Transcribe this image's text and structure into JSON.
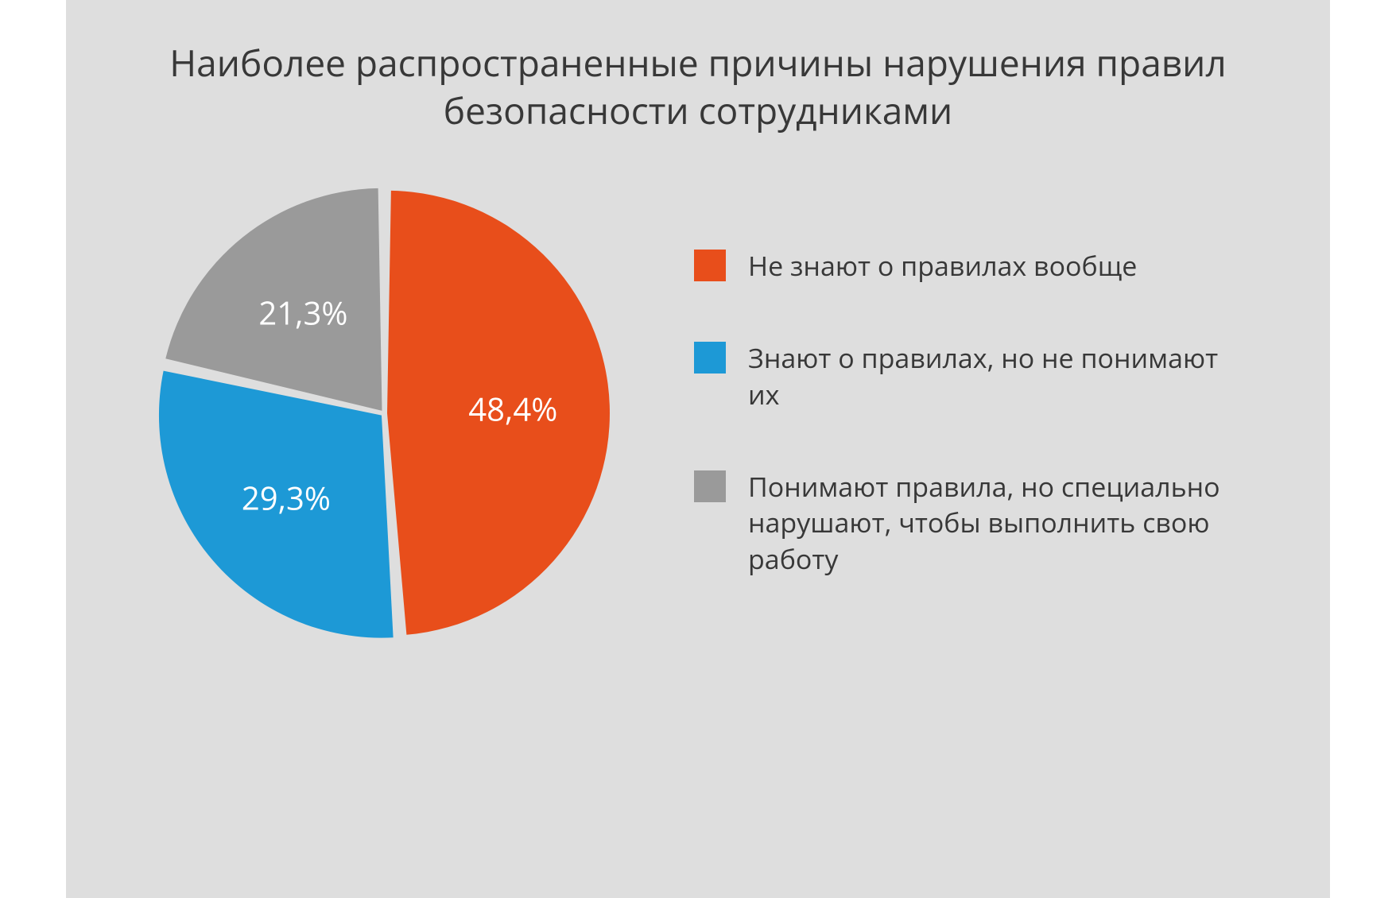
{
  "chart": {
    "type": "pie",
    "title": "Наиболее распространенные причины нарушения правил безопасности сотрудниками",
    "title_fontsize": 46,
    "title_color": "#383838",
    "background_color": "#dedede",
    "pie_radius": 280,
    "slice_gap_deg": 2,
    "label_fontsize": 40,
    "label_color": "#ffffff",
    "legend_fontsize": 34,
    "legend_text_color": "#383838",
    "legend_swatch_size": 40,
    "slices": [
      {
        "label": "Не знают о правилах вообще",
        "value": 48.4,
        "display_value": "48,4%",
        "color": "#e84e1b"
      },
      {
        "label": "Знают о правилах, но не понимают их",
        "value": 29.3,
        "display_value": "29,3%",
        "color": "#1d99d6"
      },
      {
        "label": "Понимают правила, но специально нарушают, чтобы выполнить свою работу",
        "value": 21.3,
        "display_value": "21,3%",
        "color": "#9a9a9a"
      }
    ]
  }
}
